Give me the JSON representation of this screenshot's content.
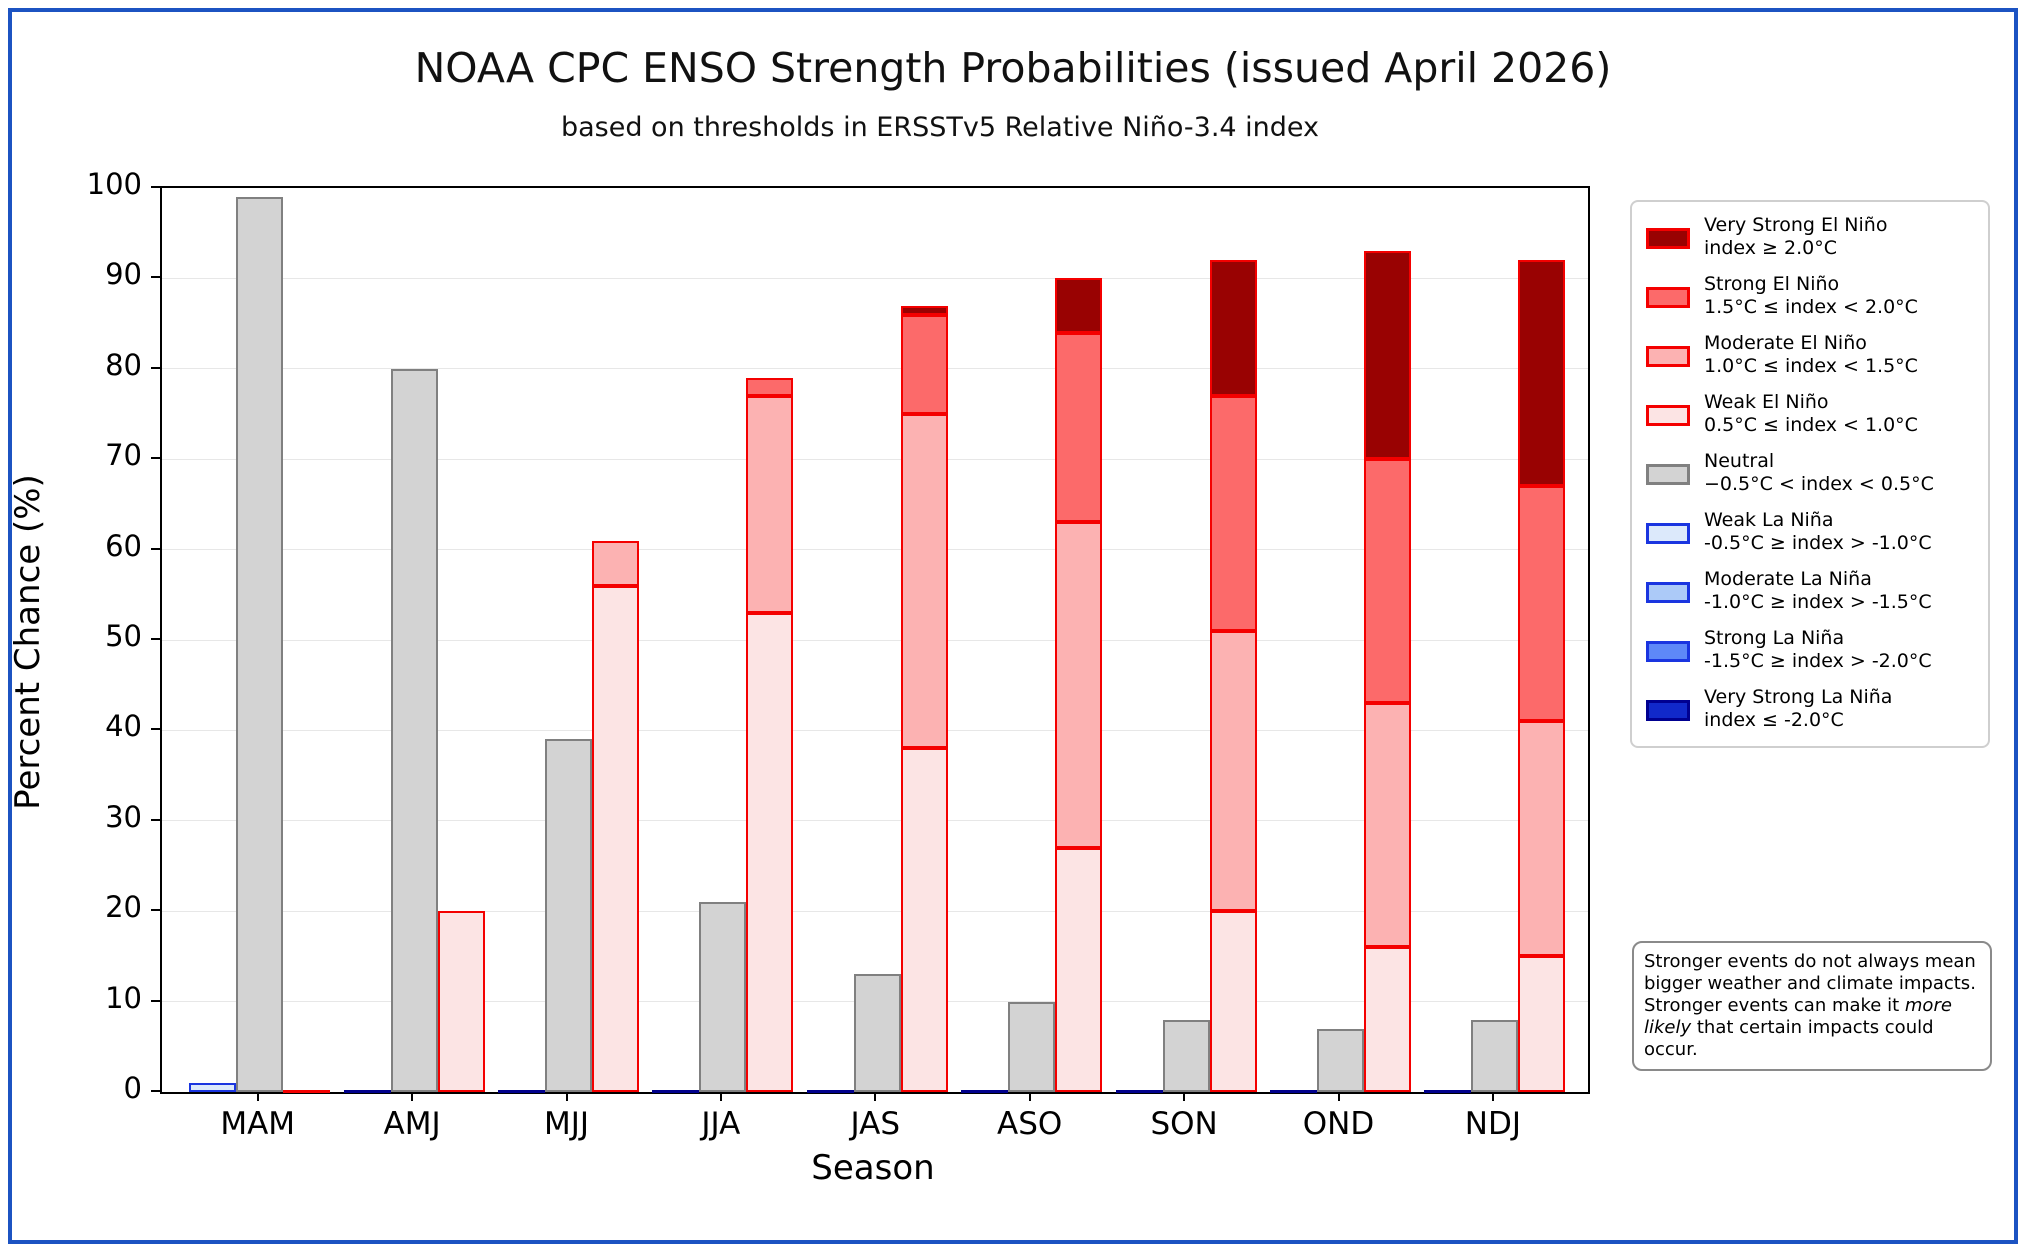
{
  "title": "NOAA CPC ENSO Strength Probabilities (issued April 2026)",
  "subtitle": "based on thresholds in ERSSTv5 Relative Niño-3.4 index",
  "axes": {
    "x_label": "Season",
    "y_label": "Percent Chance (%)",
    "y_ticks": [
      0,
      10,
      20,
      30,
      40,
      50,
      60,
      70,
      80,
      90,
      100
    ],
    "ylim": [
      0,
      100
    ],
    "grid": "horizontal"
  },
  "chart_data": {
    "type": "bar",
    "stacked": true,
    "categories": [
      "MAM",
      "AMJ",
      "MJJ",
      "JJA",
      "JAS",
      "ASO",
      "SON",
      "OND",
      "NDJ"
    ],
    "bar_order_in_group": [
      "la-nina",
      "neutral",
      "el-nino"
    ],
    "stack_order_bottom_up": true,
    "ylim": [
      0,
      100
    ],
    "series": [
      {
        "name": "Weak El Niño",
        "stack": "el-nino",
        "fill": "#fce4e4",
        "edge": "#f40000",
        "values": [
          0,
          20,
          56,
          53,
          38,
          27,
          20,
          16,
          15
        ]
      },
      {
        "name": "Moderate El Niño",
        "stack": "el-nino",
        "fill": "#fcb2b2",
        "edge": "#f40000",
        "values": [
          0,
          0,
          5,
          24,
          37,
          36,
          31,
          27,
          26
        ]
      },
      {
        "name": "Strong El Niño",
        "stack": "el-nino",
        "fill": "#fc6a6a",
        "edge": "#f40000",
        "values": [
          0,
          0,
          0,
          2,
          11,
          21,
          26,
          27,
          26
        ]
      },
      {
        "name": "Very Strong El Niño",
        "stack": "el-nino",
        "fill": "#990202",
        "edge": "#f40000",
        "values": [
          0,
          0,
          0,
          0,
          1,
          6,
          15,
          23,
          25
        ]
      },
      {
        "name": "Neutral",
        "stack": "neutral",
        "fill": "#d3d3d3",
        "edge": "#808080",
        "values": [
          99,
          80,
          39,
          21,
          13,
          10,
          8,
          7,
          8
        ]
      },
      {
        "name": "Weak La Niña",
        "stack": "la-nina",
        "fill": "#dce9fb",
        "edge": "#1a35e0",
        "values": [
          1,
          0,
          0,
          0,
          0,
          0,
          0,
          0,
          0
        ]
      },
      {
        "name": "Moderate La Niña",
        "stack": "la-nina",
        "fill": "#accaf8",
        "edge": "#1a35e0",
        "values": [
          0,
          0,
          0,
          0,
          0,
          0,
          0,
          0,
          0
        ]
      },
      {
        "name": "Strong La Niña",
        "stack": "la-nina",
        "fill": "#5e88f8",
        "edge": "#1a35e0",
        "values": [
          0,
          0,
          0,
          0,
          0,
          0,
          0,
          0,
          0
        ]
      },
      {
        "name": "Very Strong La Niña",
        "stack": "la-nina",
        "fill": "#1129ca",
        "edge": "#000090",
        "values": [
          0,
          0,
          0,
          0,
          0,
          0,
          0,
          0,
          0
        ]
      }
    ],
    "zero_stack_line_colors": {
      "la-nina": "#00008b",
      "el-nino": "#f40000"
    }
  },
  "legend": {
    "items": [
      {
        "name": "Very Strong El Niño",
        "range": "index ≥ 2.0°C",
        "fill": "#990202",
        "edge": "#f40000"
      },
      {
        "name": "Strong El Niño",
        "range": "1.5°C ≤ index < 2.0°C",
        "fill": "#fc6a6a",
        "edge": "#f40000"
      },
      {
        "name": "Moderate El Niño",
        "range": "1.0°C ≤ index < 1.5°C",
        "fill": "#fcb2b2",
        "edge": "#f40000"
      },
      {
        "name": "Weak El Niño",
        "range": "0.5°C ≤ index < 1.0°C",
        "fill": "#fce4e4",
        "edge": "#f40000"
      },
      {
        "name": "Neutral",
        "range": "−0.5°C < index < 0.5°C",
        "fill": "#d3d3d3",
        "edge": "#808080"
      },
      {
        "name": "Weak La Niña",
        "range": "-0.5°C ≥ index > -1.0°C",
        "fill": "#dce9fb",
        "edge": "#1a35e0"
      },
      {
        "name": "Moderate La Niña",
        "range": "-1.0°C ≥ index > -1.5°C",
        "fill": "#accaf8",
        "edge": "#1a35e0"
      },
      {
        "name": "Strong La Niña",
        "range": "-1.5°C ≥ index > -2.0°C",
        "fill": "#5e88f8",
        "edge": "#1a35e0"
      },
      {
        "name": "Very Strong La Niña",
        "range": "index ≤ -2.0°C",
        "fill": "#1129ca",
        "edge": "#000090"
      }
    ]
  },
  "note": {
    "pre": "Stronger events do not always mean bigger weather and climate impacts. Stronger events can make it ",
    "italic": "more likely",
    "post": " that certain impacts could occur."
  }
}
